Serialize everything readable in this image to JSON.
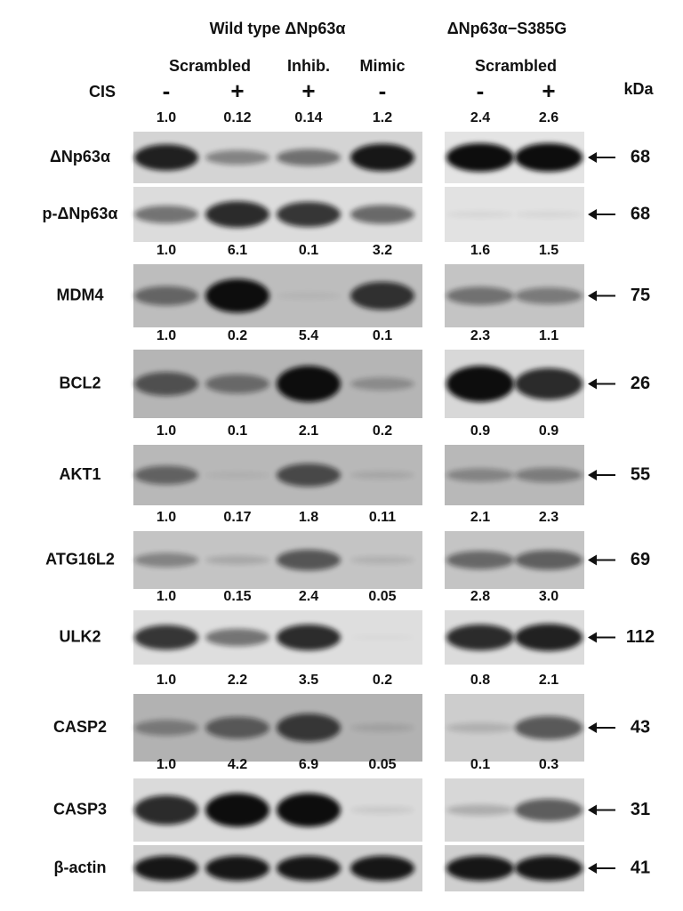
{
  "headers": {
    "wild_type": "Wild type ΔNp63α",
    "mutant": "ΔNp63α−S385G",
    "groups": [
      "Scrambled",
      "Inhib.",
      "Mimic",
      "Scrambled"
    ],
    "cis_label": "CIS",
    "cis": [
      "-",
      "+",
      "+",
      "-",
      "-",
      "+"
    ],
    "kda_label": "kDa"
  },
  "rows": [
    {
      "label": "ΔNp63α",
      "kda": 68,
      "quant": [
        "1.0",
        "0.12",
        "0.14",
        "1.2",
        "2.4",
        "2.6"
      ]
    },
    {
      "label": "p-ΔNp63α",
      "kda": 68
    },
    {
      "label": "MDM4",
      "kda": 75,
      "quant": [
        "1.0",
        "6.1",
        "0.1",
        "3.2",
        "1.6",
        "1.5"
      ]
    },
    {
      "label": "BCL2",
      "kda": 26,
      "quant": [
        "1.0",
        "0.2",
        "5.4",
        "0.1",
        "2.3",
        "1.1"
      ]
    },
    {
      "label": "AKT1",
      "kda": 55,
      "quant": [
        "1.0",
        "0.1",
        "2.1",
        "0.2",
        "0.9",
        "0.9"
      ]
    },
    {
      "label": "ATG16L2",
      "kda": 69,
      "quant": [
        "1.0",
        "0.17",
        "1.8",
        "0.11",
        "2.1",
        "2.3"
      ]
    },
    {
      "label": "ULK2",
      "kda": 112,
      "quant": [
        "1.0",
        "0.15",
        "2.4",
        "0.05",
        "2.8",
        "3.0"
      ]
    },
    {
      "label": "CASP2",
      "kda": 43,
      "quant": [
        "1.0",
        "2.2",
        "3.5",
        "0.2",
        "0.8",
        "2.1"
      ]
    },
    {
      "label": "CASP3",
      "kda": 31,
      "quant": [
        "1.0",
        "4.2",
        "6.9",
        "0.05",
        "0.1",
        "0.3"
      ]
    },
    {
      "label": "β-actin",
      "kda": 41
    }
  ]
}
